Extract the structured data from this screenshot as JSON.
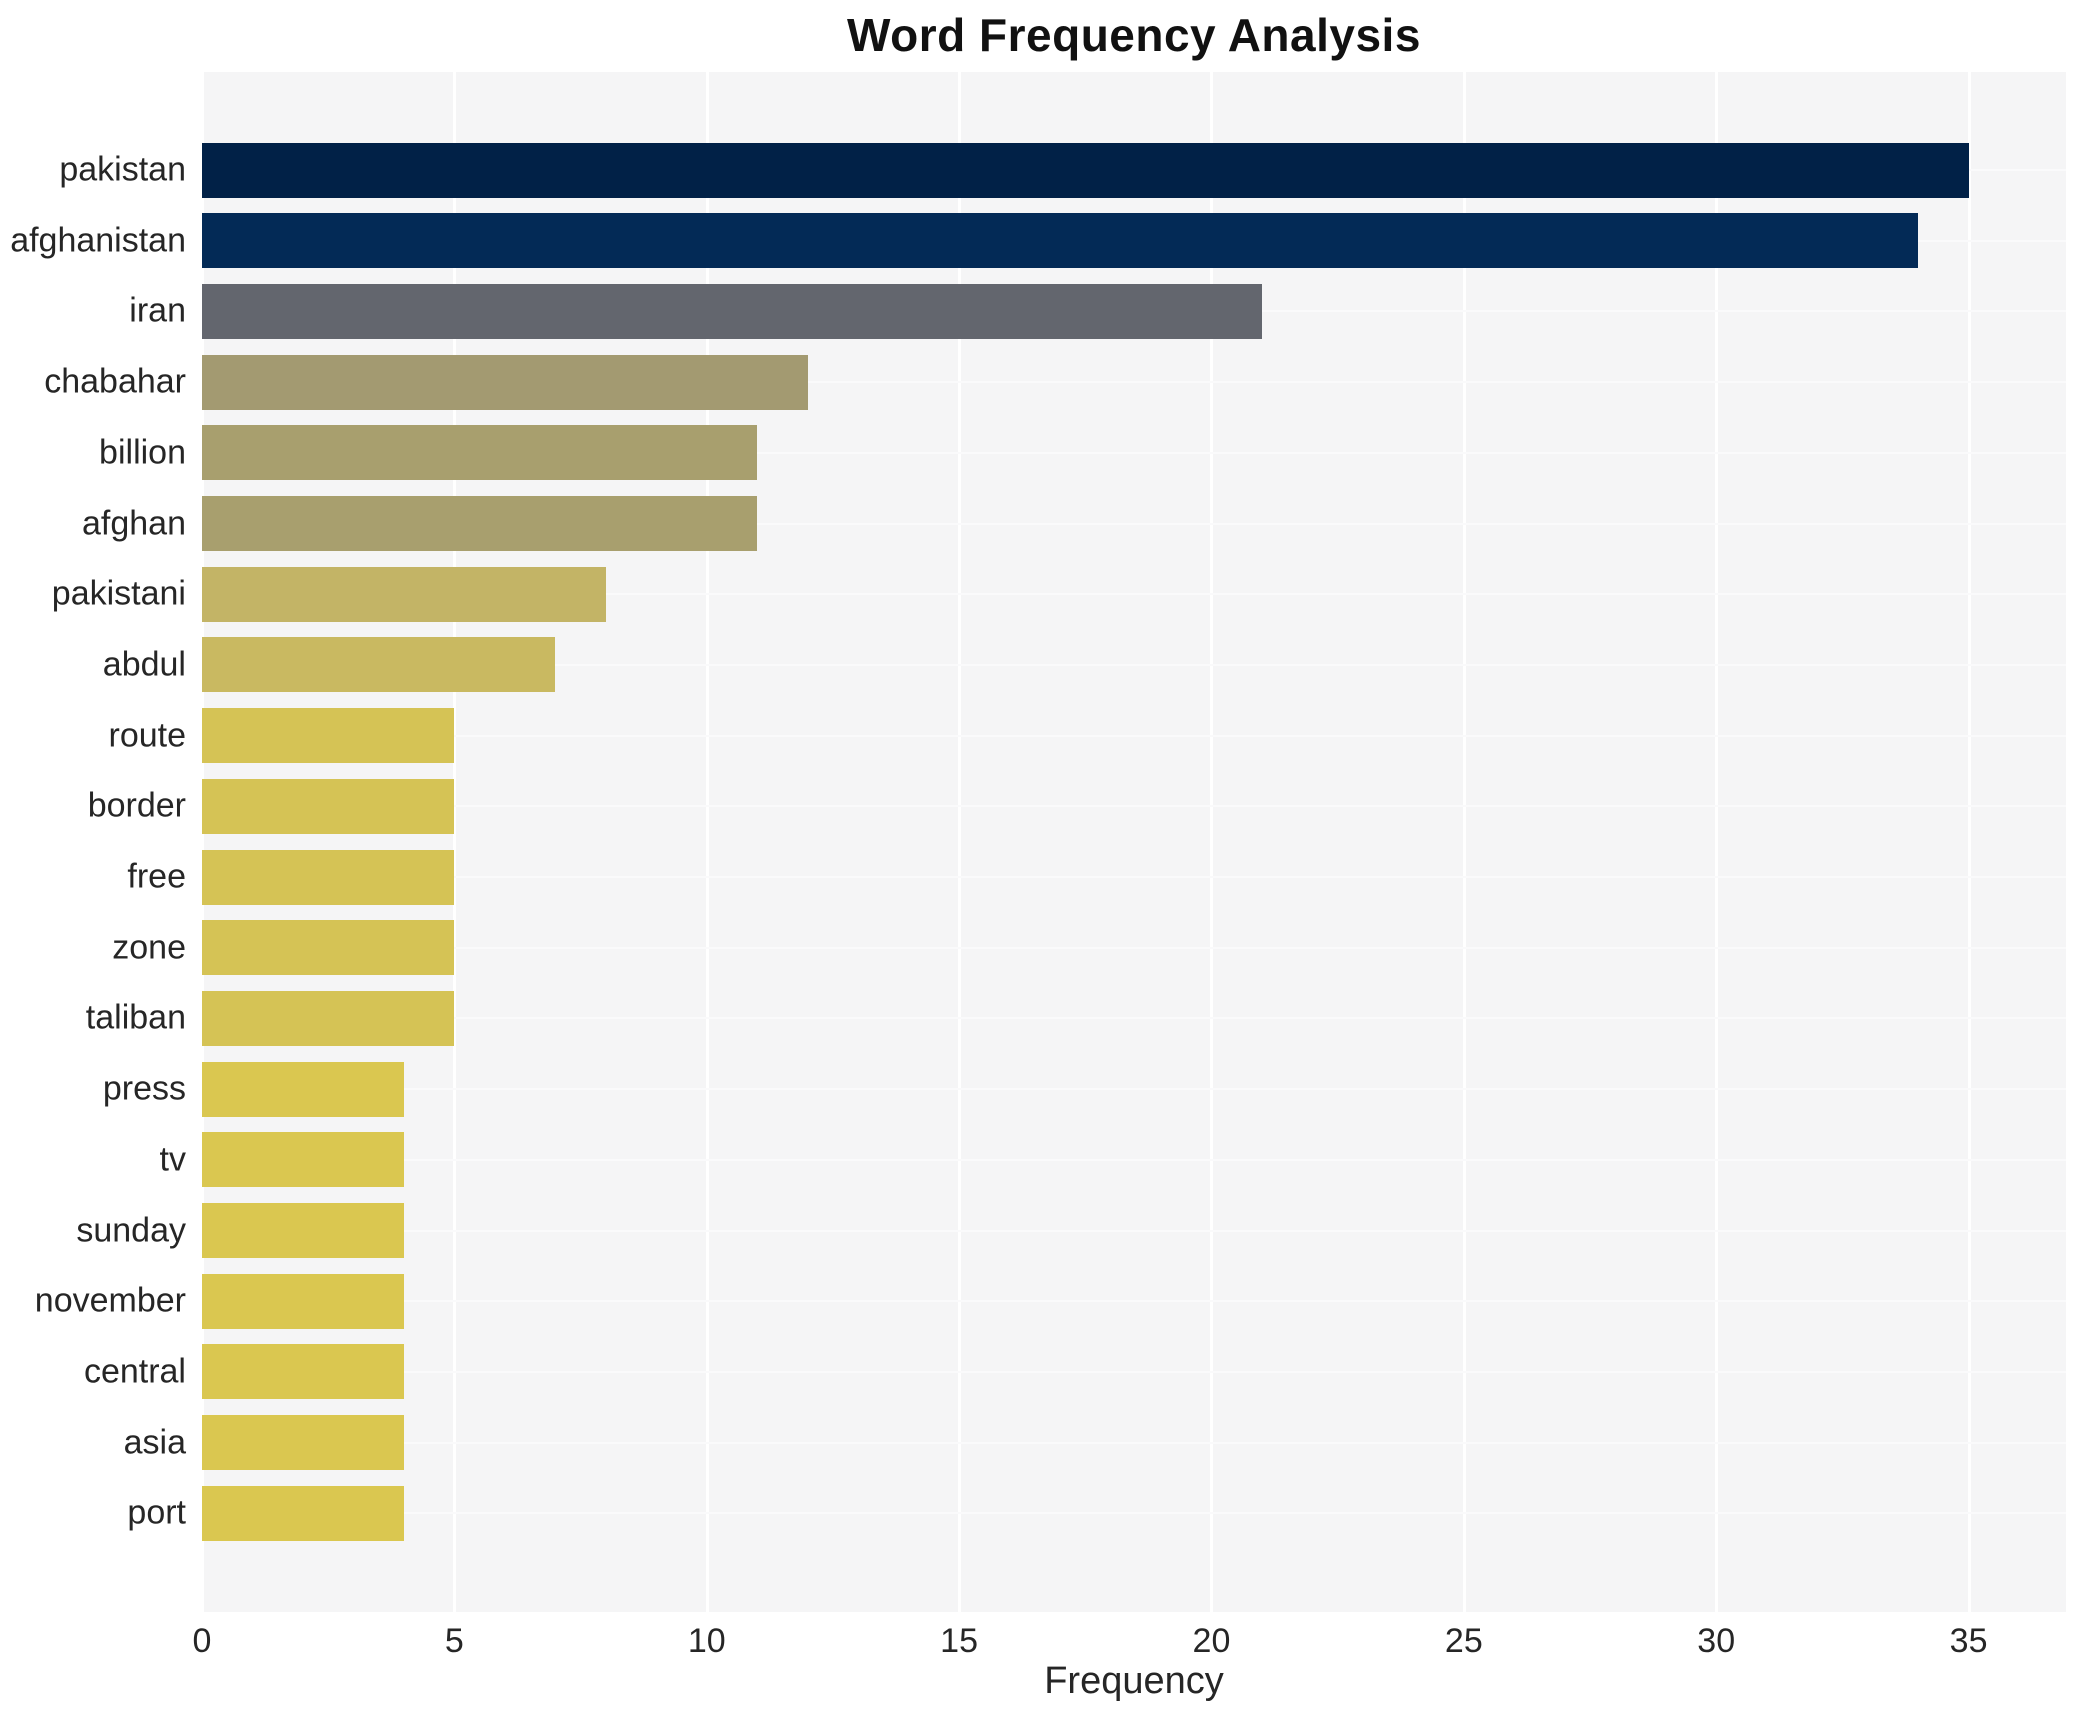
{
  "chart_data": {
    "type": "bar",
    "orientation": "horizontal",
    "title": "Word Frequency Analysis",
    "xlabel": "Frequency",
    "ylabel": "",
    "categories": [
      "pakistan",
      "afghanistan",
      "iran",
      "chabahar",
      "billion",
      "afghan",
      "pakistani",
      "abdul",
      "route",
      "border",
      "free",
      "zone",
      "taliban",
      "press",
      "tv",
      "sunday",
      "november",
      "central",
      "asia",
      "port"
    ],
    "values": [
      35,
      34,
      21,
      12,
      11,
      11,
      8,
      7,
      5,
      5,
      5,
      5,
      5,
      4,
      4,
      4,
      4,
      4,
      4,
      4
    ],
    "bar_colors": [
      "#012147",
      "#032a56",
      "#63666e",
      "#a39a71",
      "#a89f6e",
      "#a89f6e",
      "#c3b466",
      "#c9b961",
      "#d5c355",
      "#d5c355",
      "#d5c355",
      "#d5c355",
      "#d5c355",
      "#dac750",
      "#dac750",
      "#dac750",
      "#dac750",
      "#dac750",
      "#dac750",
      "#dac750"
    ],
    "xlim": [
      0,
      36.93
    ],
    "x_ticks": [
      0,
      5,
      10,
      15,
      20,
      25,
      30,
      35
    ],
    "grid": "both",
    "legend": "none",
    "plot_bg": "#f5f5f6",
    "grid_color": "#ffffff",
    "text_color": "#262626",
    "title_color": "#111111"
  }
}
